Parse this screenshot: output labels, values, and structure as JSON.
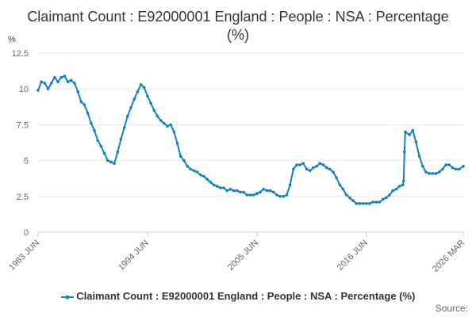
{
  "page": {
    "title": "Claimant Count : E92000001 England : People : NSA : Percentage (%)",
    "y_unit": "%",
    "source_label": "Source:"
  },
  "colors": {
    "series": "#1380c3",
    "grid": "#e6e6e6",
    "axis_text": "#666666",
    "title": "#333333"
  },
  "chart_data": {
    "type": "line",
    "title": "Claimant Count : E92000001 England : People : NSA : Percentage (%)",
    "ylabel": "%",
    "xlabel": "",
    "ylim": [
      0,
      12.5
    ],
    "yticks": [
      0,
      2.5,
      5,
      7.5,
      10,
      12.5
    ],
    "ytick_labels": [
      "0",
      "2.5",
      "5",
      "7.5",
      "10",
      "12.5"
    ],
    "x_range": [
      "1983-06",
      "2026-03"
    ],
    "xtick_labels": [
      {
        "label": "1983 JUN",
        "date": "1983-06"
      },
      {
        "label": "1994 JUN",
        "date": "1994-06"
      },
      {
        "label": "2005 JUN",
        "date": "2005-06"
      },
      {
        "label": "2016 JUN",
        "date": "2016-06"
      },
      {
        "label": "2026 MAR",
        "date": "2026-03"
      }
    ],
    "grid": "horizontal",
    "legend_position": "bottom",
    "series": [
      {
        "name": "Claimant Count : E92000001 England : People : NSA : Percentage (%)",
        "points": [
          [
            "1983-06",
            9.9
          ],
          [
            "1983-10",
            10.5
          ],
          [
            "1984-02",
            10.4
          ],
          [
            "1984-06",
            10.0
          ],
          [
            "1984-10",
            10.4
          ],
          [
            "1985-02",
            10.8
          ],
          [
            "1985-06",
            10.5
          ],
          [
            "1985-10",
            10.8
          ],
          [
            "1986-02",
            10.9
          ],
          [
            "1986-06",
            10.5
          ],
          [
            "1986-10",
            10.6
          ],
          [
            "1987-02",
            10.4
          ],
          [
            "1987-06",
            9.8
          ],
          [
            "1987-10",
            9.1
          ],
          [
            "1988-02",
            8.9
          ],
          [
            "1988-06",
            8.3
          ],
          [
            "1988-10",
            7.6
          ],
          [
            "1989-02",
            7.1
          ],
          [
            "1989-06",
            6.4
          ],
          [
            "1989-10",
            6.0
          ],
          [
            "1990-02",
            5.5
          ],
          [
            "1990-06",
            5.0
          ],
          [
            "1990-10",
            4.9
          ],
          [
            "1991-02",
            4.8
          ],
          [
            "1991-06",
            5.6
          ],
          [
            "1991-10",
            6.5
          ],
          [
            "1992-02",
            7.3
          ],
          [
            "1992-06",
            8.1
          ],
          [
            "1992-10",
            8.7
          ],
          [
            "1993-02",
            9.3
          ],
          [
            "1993-06",
            9.8
          ],
          [
            "1993-10",
            10.3
          ],
          [
            "1994-02",
            10.1
          ],
          [
            "1994-06",
            9.5
          ],
          [
            "1994-10",
            9.0
          ],
          [
            "1995-02",
            8.5
          ],
          [
            "1995-06",
            8.1
          ],
          [
            "1995-10",
            7.8
          ],
          [
            "1996-02",
            7.6
          ],
          [
            "1996-06",
            7.4
          ],
          [
            "1996-10",
            7.5
          ],
          [
            "1997-02",
            7.0
          ],
          [
            "1997-06",
            6.2
          ],
          [
            "1997-10",
            5.3
          ],
          [
            "1998-02",
            5.0
          ],
          [
            "1998-06",
            4.6
          ],
          [
            "1998-10",
            4.4
          ],
          [
            "1999-02",
            4.3
          ],
          [
            "1999-06",
            4.2
          ],
          [
            "1999-10",
            4.0
          ],
          [
            "2000-02",
            3.9
          ],
          [
            "2000-06",
            3.7
          ],
          [
            "2000-10",
            3.5
          ],
          [
            "2001-02",
            3.3
          ],
          [
            "2001-06",
            3.2
          ],
          [
            "2001-10",
            3.1
          ],
          [
            "2002-02",
            3.1
          ],
          [
            "2002-06",
            2.9
          ],
          [
            "2002-10",
            3.0
          ],
          [
            "2003-02",
            2.9
          ],
          [
            "2003-06",
            2.9
          ],
          [
            "2003-10",
            2.8
          ],
          [
            "2004-02",
            2.8
          ],
          [
            "2004-06",
            2.6
          ],
          [
            "2004-10",
            2.6
          ],
          [
            "2005-02",
            2.6
          ],
          [
            "2005-06",
            2.7
          ],
          [
            "2005-10",
            2.8
          ],
          [
            "2006-02",
            3.0
          ],
          [
            "2006-06",
            2.9
          ],
          [
            "2006-10",
            2.9
          ],
          [
            "2007-02",
            2.8
          ],
          [
            "2007-06",
            2.6
          ],
          [
            "2007-10",
            2.5
          ],
          [
            "2008-02",
            2.5
          ],
          [
            "2008-06",
            2.6
          ],
          [
            "2008-10",
            3.3
          ],
          [
            "2009-02",
            4.4
          ],
          [
            "2009-06",
            4.7
          ],
          [
            "2009-10",
            4.7
          ],
          [
            "2010-02",
            4.8
          ],
          [
            "2010-06",
            4.4
          ],
          [
            "2010-10",
            4.3
          ],
          [
            "2011-02",
            4.5
          ],
          [
            "2011-06",
            4.6
          ],
          [
            "2011-10",
            4.8
          ],
          [
            "2012-02",
            4.7
          ],
          [
            "2012-06",
            4.5
          ],
          [
            "2012-10",
            4.4
          ],
          [
            "2013-02",
            4.2
          ],
          [
            "2013-06",
            3.8
          ],
          [
            "2013-10",
            3.3
          ],
          [
            "2014-02",
            3.0
          ],
          [
            "2014-06",
            2.6
          ],
          [
            "2014-10",
            2.4
          ],
          [
            "2015-02",
            2.2
          ],
          [
            "2015-06",
            2.0
          ],
          [
            "2015-10",
            2.0
          ],
          [
            "2016-02",
            2.0
          ],
          [
            "2016-06",
            2.0
          ],
          [
            "2016-10",
            2.0
          ],
          [
            "2017-02",
            2.1
          ],
          [
            "2017-06",
            2.1
          ],
          [
            "2017-10",
            2.1
          ],
          [
            "2018-02",
            2.3
          ],
          [
            "2018-06",
            2.4
          ],
          [
            "2018-10",
            2.6
          ],
          [
            "2019-02",
            2.9
          ],
          [
            "2019-06",
            3.0
          ],
          [
            "2019-10",
            3.2
          ],
          [
            "2020-02",
            3.3
          ],
          [
            "2020-03",
            3.6
          ],
          [
            "2020-04",
            5.6
          ],
          [
            "2020-05",
            7.0
          ],
          [
            "2020-10",
            6.8
          ],
          [
            "2021-02",
            7.1
          ],
          [
            "2021-06",
            6.3
          ],
          [
            "2021-10",
            5.3
          ],
          [
            "2022-02",
            4.6
          ],
          [
            "2022-06",
            4.2
          ],
          [
            "2022-10",
            4.1
          ],
          [
            "2023-02",
            4.1
          ],
          [
            "2023-06",
            4.1
          ],
          [
            "2023-10",
            4.2
          ],
          [
            "2024-02",
            4.4
          ],
          [
            "2024-06",
            4.7
          ],
          [
            "2024-10",
            4.7
          ],
          [
            "2025-02",
            4.5
          ],
          [
            "2025-06",
            4.4
          ],
          [
            "2025-10",
            4.4
          ],
          [
            "2026-03",
            4.6
          ]
        ]
      }
    ]
  }
}
